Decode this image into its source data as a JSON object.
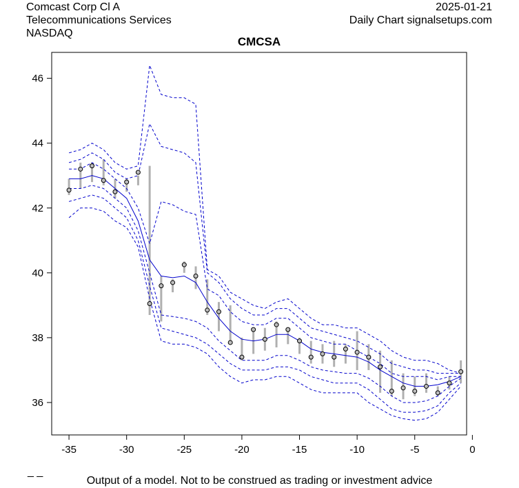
{
  "header": {
    "company": "Comcast Corp Cl A",
    "sector": "Telecommunications Services",
    "exchange": "NASDAQ",
    "date": "2025-01-21",
    "source": "Daily Chart signalsetups.com"
  },
  "footer": {
    "disclaimer": "Output of a model. Not to be construed as trading or investment advice",
    "marker": "_ _"
  },
  "chart_data": {
    "type": "line",
    "title": "CMCSA",
    "xlabel": "",
    "ylabel": "",
    "xlim": [
      -36.5,
      -0.5
    ],
    "ylim": [
      35.0,
      46.8
    ],
    "xticks": [
      -35,
      -30,
      -25,
      -20,
      -15,
      -10,
      -5,
      0
    ],
    "yticks": [
      36,
      38,
      40,
      42,
      44,
      46
    ],
    "x": [
      -35,
      -34,
      -33,
      -32,
      -31,
      -30,
      -29,
      -28,
      -27,
      -26,
      -25,
      -24,
      -23,
      -22,
      -21,
      -20,
      -19,
      -18,
      -17,
      -16,
      -15,
      -14,
      -13,
      -12,
      -11,
      -10,
      -9,
      -8,
      -7,
      -6,
      -5,
      -4,
      -3,
      -2,
      -1
    ],
    "close": [
      42.55,
      43.2,
      43.3,
      42.85,
      42.5,
      42.8,
      43.1,
      39.05,
      39.6,
      39.7,
      40.25,
      39.9,
      38.85,
      38.8,
      37.85,
      37.4,
      38.25,
      37.95,
      38.4,
      38.25,
      37.9,
      37.4,
      37.5,
      37.4,
      37.65,
      37.55,
      37.4,
      37.1,
      36.35,
      36.45,
      36.35,
      36.5,
      36.3,
      36.6,
      36.95
    ],
    "range_high": [
      42.9,
      43.4,
      43.4,
      43.5,
      42.9,
      42.9,
      43.0,
      43.3,
      39.9,
      39.8,
      40.35,
      40.2,
      39.8,
      39.1,
      39.0,
      38.0,
      38.3,
      38.3,
      38.5,
      38.3,
      38.0,
      37.9,
      37.8,
      37.9,
      37.8,
      38.2,
      37.8,
      37.6,
      37.3,
      36.9,
      36.8,
      36.9,
      36.5,
      36.8,
      37.3
    ],
    "range_low": [
      42.4,
      42.6,
      42.8,
      42.7,
      42.3,
      42.5,
      42.7,
      38.7,
      38.5,
      39.4,
      40.0,
      39.5,
      38.7,
      38.2,
      37.8,
      37.3,
      37.5,
      37.6,
      37.7,
      37.8,
      37.5,
      37.2,
      37.2,
      37.1,
      37.2,
      37.0,
      37.0,
      36.3,
      36.2,
      36.1,
      36.2,
      36.3,
      36.2,
      36.4,
      36.6
    ],
    "series": [
      {
        "name": "upper band 3",
        "style": "dashed",
        "values": [
          43.7,
          43.8,
          44.0,
          43.8,
          43.4,
          43.2,
          43.3,
          46.4,
          45.5,
          45.4,
          45.4,
          45.2,
          40.1,
          39.9,
          39.4,
          39.2,
          39.0,
          38.9,
          39.1,
          39.2,
          38.9,
          38.6,
          38.4,
          38.4,
          38.3,
          38.3,
          38.1,
          37.9,
          37.6,
          37.4,
          37.3,
          37.3,
          37.2,
          37.0,
          36.9
        ]
      },
      {
        "name": "upper band 2",
        "style": "dashed",
        "values": [
          43.4,
          43.5,
          43.7,
          43.5,
          43.1,
          42.9,
          43.0,
          44.6,
          43.9,
          43.8,
          43.7,
          43.4,
          40.0,
          39.7,
          39.2,
          38.9,
          38.7,
          38.7,
          38.9,
          38.9,
          38.6,
          38.3,
          38.2,
          38.1,
          38.0,
          37.9,
          37.7,
          37.5,
          37.2,
          37.1,
          37.0,
          37.0,
          36.9,
          36.9,
          36.9
        ]
      },
      {
        "name": "upper band 1",
        "style": "dashed",
        "values": [
          43.2,
          43.2,
          43.4,
          43.2,
          42.9,
          42.6,
          42.0,
          40.9,
          42.2,
          42.1,
          41.9,
          41.8,
          39.5,
          39.3,
          38.8,
          38.5,
          38.4,
          38.4,
          38.6,
          38.6,
          38.3,
          38.0,
          37.9,
          37.8,
          37.8,
          37.6,
          37.4,
          37.2,
          36.9,
          36.8,
          36.8,
          36.8,
          36.7,
          36.8,
          36.8
        ]
      },
      {
        "name": "model line",
        "style": "solid",
        "values": [
          42.9,
          42.9,
          43.0,
          42.9,
          42.6,
          42.3,
          41.6,
          40.4,
          39.9,
          39.85,
          39.9,
          39.7,
          39.1,
          38.6,
          38.2,
          37.95,
          37.9,
          37.95,
          38.1,
          38.1,
          37.9,
          37.65,
          37.55,
          37.5,
          37.45,
          37.4,
          37.25,
          37.0,
          36.8,
          36.6,
          36.5,
          36.5,
          36.55,
          36.65,
          36.8
        ]
      },
      {
        "name": "lower band 1",
        "style": "dashed",
        "values": [
          42.6,
          42.6,
          42.7,
          42.6,
          42.3,
          42.0,
          41.3,
          40.0,
          38.7,
          38.65,
          38.6,
          38.5,
          38.3,
          37.9,
          37.6,
          37.3,
          37.3,
          37.3,
          37.45,
          37.45,
          37.3,
          37.1,
          37.0,
          36.95,
          36.9,
          36.9,
          36.75,
          36.5,
          36.2,
          36.0,
          36.0,
          36.05,
          36.2,
          36.5,
          36.75
        ]
      },
      {
        "name": "lower band 2",
        "style": "dashed",
        "values": [
          42.2,
          42.3,
          42.4,
          42.3,
          42.0,
          41.7,
          41.0,
          39.6,
          38.3,
          38.2,
          38.1,
          38.0,
          37.8,
          37.5,
          37.2,
          37.0,
          37.0,
          37.0,
          37.1,
          37.1,
          37.0,
          36.8,
          36.7,
          36.6,
          36.6,
          36.6,
          36.4,
          36.1,
          35.8,
          35.7,
          35.7,
          35.75,
          35.9,
          36.3,
          36.6
        ]
      },
      {
        "name": "lower band 3",
        "style": "dashed",
        "values": [
          41.7,
          42.0,
          42.0,
          41.9,
          41.6,
          41.4,
          40.8,
          39.2,
          37.9,
          37.8,
          37.8,
          37.7,
          37.5,
          37.1,
          36.8,
          36.6,
          36.7,
          36.7,
          36.8,
          36.8,
          36.6,
          36.4,
          36.3,
          36.3,
          36.3,
          36.3,
          36.0,
          35.8,
          35.6,
          35.5,
          35.45,
          35.5,
          35.7,
          36.1,
          36.5
        ]
      }
    ],
    "colors": {
      "bands": "#0000cc",
      "model": "#0000cc",
      "range_bars": "#b0b0b0",
      "close_points_fill": "#bdbdbd",
      "close_points_stroke": "#000000"
    }
  }
}
